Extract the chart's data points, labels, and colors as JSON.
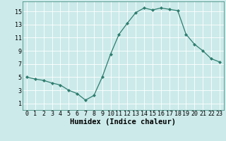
{
  "xlabel": "Humidex (Indice chaleur)",
  "x": [
    0,
    1,
    2,
    3,
    4,
    5,
    6,
    7,
    8,
    9,
    10,
    11,
    12,
    13,
    14,
    15,
    16,
    17,
    18,
    19,
    20,
    21,
    22,
    23
  ],
  "y": [
    5.0,
    4.7,
    4.5,
    4.1,
    3.8,
    3.0,
    2.5,
    1.5,
    2.2,
    5.0,
    8.5,
    11.5,
    13.2,
    14.8,
    15.5,
    15.2,
    15.5,
    15.3,
    15.1,
    11.5,
    10.0,
    9.0,
    7.8,
    7.3
  ],
  "line_color": "#2e7d6e",
  "marker": "D",
  "marker_size": 2.0,
  "bg_color": "#cceaea",
  "grid_color": "#b0d8d8",
  "ylim": [
    0,
    16.5
  ],
  "xlim": [
    -0.5,
    23.5
  ],
  "yticks": [
    1,
    3,
    5,
    7,
    9,
    11,
    13,
    15
  ],
  "xtick_labels": [
    "0",
    "1",
    "2",
    "3",
    "4",
    "5",
    "6",
    "7",
    "8",
    "9",
    "10",
    "11",
    "12",
    "13",
    "14",
    "15",
    "16",
    "17",
    "18",
    "19",
    "20",
    "21",
    "22",
    "23"
  ],
  "tick_fontsize": 6.0,
  "xlabel_fontsize": 7.5
}
